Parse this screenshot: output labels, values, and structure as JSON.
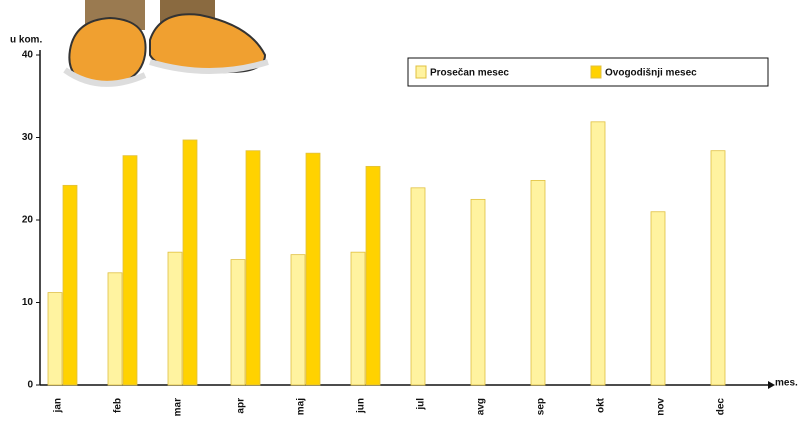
{
  "chart_data": {
    "type": "bar",
    "y_label": "u kom.",
    "x_label": "mes.",
    "categories": [
      "jan",
      "feb",
      "mar",
      "apr",
      "maj",
      "jun",
      "jul",
      "avg",
      "sep",
      "okt",
      "nov",
      "dec"
    ],
    "series": [
      {
        "name": "Prosečan mesec",
        "color": "#fff3a0",
        "values": [
          11.2,
          13.6,
          16.1,
          15.2,
          15.8,
          16.1,
          23.9,
          22.5,
          24.8,
          31.9,
          21,
          28.4
        ]
      },
      {
        "name": "Ovogodišnji mesec",
        "color": "#ffd200",
        "values": [
          24.2,
          27.8,
          29.7,
          28.4,
          28.1,
          26.5,
          null,
          null,
          null,
          null,
          null,
          null
        ]
      }
    ],
    "ylim": [
      0,
      40
    ],
    "yticks": [
      0,
      10,
      20,
      30,
      40
    ],
    "grid": false,
    "legend": "top-right"
  }
}
